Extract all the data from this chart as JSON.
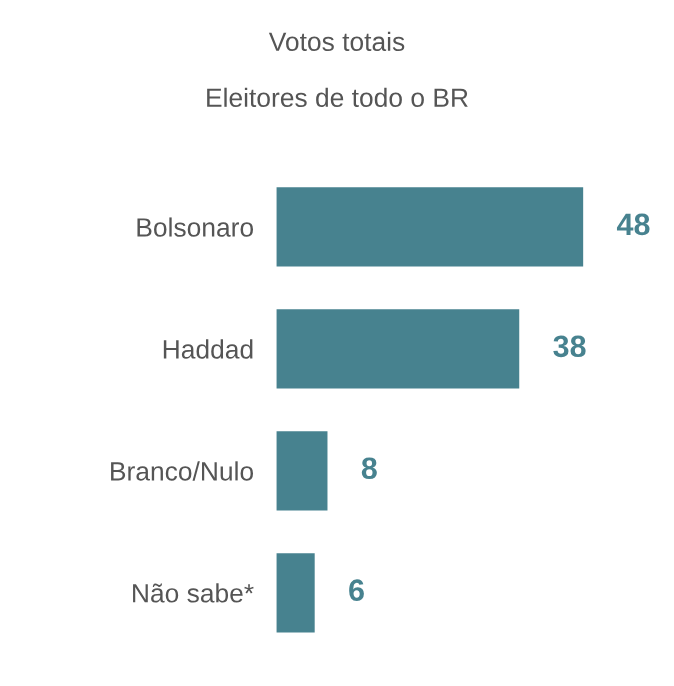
{
  "chart_data": {
    "type": "bar",
    "orientation": "horizontal",
    "title": "Votos totais",
    "subtitle": "Eleitores de todo o BR",
    "categories": [
      "Bolsonaro",
      "Haddad",
      "Branco/Nulo",
      "Não sabe*"
    ],
    "values": [
      48,
      38,
      8,
      6
    ],
    "color": "#47828f",
    "data_labels": true,
    "grid": false,
    "legend": false,
    "tick_labels": "y"
  }
}
